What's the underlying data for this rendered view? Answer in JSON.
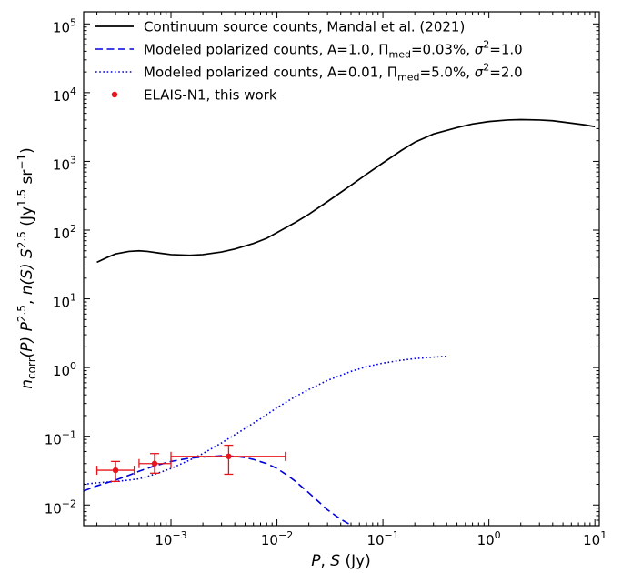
{
  "chart_data": {
    "type": "line",
    "x_scale": "log",
    "y_scale": "log",
    "xlim": [
      0.00015,
      11
    ],
    "ylim": [
      0.005,
      150000
    ],
    "xlabel": "P, S (Jy)",
    "ylabel": "ncorr(P) P^2.5, n(S) S^2.5 (Jy^1.5 sr^-1)",
    "x_ticks": [
      {
        "value": 0.001,
        "base": "10",
        "exp": "−3"
      },
      {
        "value": 0.01,
        "base": "10",
        "exp": "−2"
      },
      {
        "value": 0.1,
        "base": "10",
        "exp": "−1"
      },
      {
        "value": 1,
        "base": "10",
        "exp": "0"
      },
      {
        "value": 10,
        "base": "10",
        "exp": "1"
      }
    ],
    "y_ticks": [
      {
        "value": 0.01,
        "base": "10",
        "exp": "−2"
      },
      {
        "value": 0.1,
        "base": "10",
        "exp": "−1"
      },
      {
        "value": 1,
        "base": "10",
        "exp": "0"
      },
      {
        "value": 10,
        "base": "10",
        "exp": "1"
      },
      {
        "value": 100,
        "base": "10",
        "exp": "2"
      },
      {
        "value": 1000,
        "base": "10",
        "exp": "3"
      },
      {
        "value": 10000,
        "base": "10",
        "exp": "4"
      },
      {
        "value": 100000,
        "base": "10",
        "exp": "5"
      }
    ],
    "legend_position": "top-left",
    "series": [
      {
        "name": "Continuum source counts, Mandal et al. (2021)",
        "style": "solid",
        "color": "#000000",
        "x": [
          0.0002,
          0.00025,
          0.0003,
          0.0004,
          0.0005,
          0.0006,
          0.0008,
          0.001,
          0.0015,
          0.002,
          0.003,
          0.004,
          0.006,
          0.008,
          0.01,
          0.015,
          0.02,
          0.03,
          0.05,
          0.07,
          0.1,
          0.15,
          0.2,
          0.3,
          0.5,
          0.7,
          1,
          1.5,
          2,
          3,
          4,
          6,
          8,
          10
        ],
        "y": [
          34,
          40,
          45,
          49,
          50,
          49,
          46,
          44,
          43,
          44,
          48,
          53,
          64,
          76,
          92,
          130,
          170,
          260,
          450,
          650,
          950,
          1450,
          1900,
          2500,
          3100,
          3500,
          3800,
          4000,
          4050,
          4000,
          3900,
          3600,
          3400,
          3200
        ]
      },
      {
        "name": "Modeled polarized counts, A=1.0, Πmed=0.03%, σ²=1.0",
        "style": "dashed",
        "color": "#0000dd",
        "x": [
          0.00015,
          0.0002,
          0.0003,
          0.0004,
          0.0005,
          0.0007,
          0.001,
          0.0015,
          0.002,
          0.003,
          0.004,
          0.005,
          0.006,
          0.008,
          0.01,
          0.013,
          0.015,
          0.02,
          0.025,
          0.03,
          0.04,
          0.05
        ],
        "y": [
          0.016,
          0.019,
          0.023,
          0.027,
          0.031,
          0.037,
          0.043,
          0.048,
          0.05,
          0.052,
          0.051,
          0.049,
          0.046,
          0.04,
          0.034,
          0.026,
          0.022,
          0.015,
          0.011,
          0.0085,
          0.0062,
          0.0051
        ]
      },
      {
        "name": "Modeled polarized counts, A=0.01, Πmed=5.0%, σ²=2.0",
        "style": "dotted",
        "color": "#0000dd",
        "x": [
          0.00015,
          0.0002,
          0.0003,
          0.0004,
          0.0005,
          0.0006,
          0.0008,
          0.001,
          0.0015,
          0.002,
          0.003,
          0.005,
          0.007,
          0.01,
          0.015,
          0.02,
          0.03,
          0.05,
          0.07,
          0.1,
          0.15,
          0.2,
          0.3,
          0.4
        ],
        "y": [
          0.02,
          0.021,
          0.022,
          0.023,
          0.024,
          0.026,
          0.03,
          0.034,
          0.045,
          0.056,
          0.08,
          0.13,
          0.18,
          0.26,
          0.38,
          0.48,
          0.65,
          0.88,
          1.03,
          1.16,
          1.28,
          1.35,
          1.42,
          1.46
        ]
      }
    ],
    "points": {
      "name": "ELAIS-N1, this work",
      "color": "#e8141c",
      "data": [
        {
          "x": 0.0003,
          "y": 0.032,
          "xerr": [
            0.0002,
            0.00045
          ],
          "yerr": [
            0.022,
            0.043
          ]
        },
        {
          "x": 0.0007,
          "y": 0.04,
          "xerr": [
            0.0005,
            0.001
          ],
          "yerr": [
            0.029,
            0.056
          ]
        },
        {
          "x": 0.0035,
          "y": 0.051,
          "xerr": [
            0.001,
            0.012
          ],
          "yerr": [
            0.028,
            0.074
          ]
        }
      ]
    },
    "legend": [
      {
        "label": "Continuum source counts, Mandal et al. (2021)",
        "style": "solid"
      },
      {
        "label": "Modeled polarized counts, A=1.0, Π",
        "sub": "med",
        "tail1": "=0.03%, ",
        "sym": "σ",
        "sup": "2",
        "tail2": "=1.0",
        "style": "dashed"
      },
      {
        "label": "Modeled polarized counts, A=0.01, Π",
        "sub": "med",
        "tail1": "=5.0%, ",
        "sym": "σ",
        "sup": "2",
        "tail2": "=2.0",
        "style": "dotted"
      },
      {
        "label": "ELAIS-N1, this work",
        "style": "marker"
      }
    ],
    "xlabel_parts": {
      "v1": "P",
      "sep": ", ",
      "v2": "S",
      "unit": " (Jy)"
    },
    "ylabel_parts": {
      "n": "n",
      "corr": "corr",
      "arg1": "(P) ",
      "P": "P",
      "exp1": "2.5",
      "comma": ", ",
      "n2": "n",
      "arg2": "(S) ",
      "S": "S",
      "exp2": "2.5",
      "unit_open": " (Jy",
      "unit_exp": "1.5",
      "unit_mid": " sr",
      "unit_exp2": "−1",
      "unit_close": ")"
    }
  }
}
